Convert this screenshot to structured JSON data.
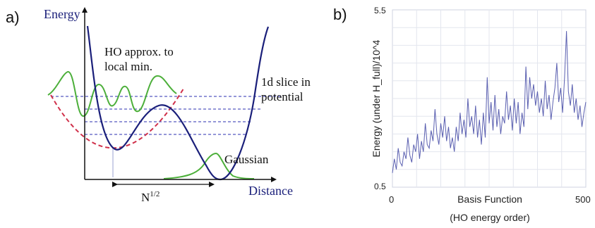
{
  "panel_a": {
    "label": "a)",
    "y_axis_label": "Energy",
    "x_axis_label": "Distance",
    "annotation_ho": [
      "HO approx. to",
      "local min."
    ],
    "annotation_slice": [
      "1d slice in",
      "potential"
    ],
    "annotation_gaussian": "Gaussian",
    "width_label_base": "N",
    "width_label_exp": "1/2",
    "colors": {
      "potential": "#1a1f7a",
      "ho_approx": "#d0304a",
      "wavefunction": "#4caf3a",
      "levels": "#2b2fb0",
      "axis": "#111111"
    }
  },
  "panel_b": {
    "label": "b)",
    "chart_data": {
      "type": "line",
      "xlabel": "Basis Function",
      "xlabel_2": "(HO energy order)",
      "ylabel": "Energy  (under H_full)/10^4",
      "xlim": [
        0,
        500
      ],
      "ylim": [
        0.5,
        5.5
      ],
      "x_ticks": [
        "0",
        "500"
      ],
      "y_ticks": [
        "0.5",
        "5.5"
      ],
      "grid": true,
      "line_color": "#5a5fb0",
      "series": [
        {
          "x": [
            0,
            5,
            10,
            15,
            20,
            25,
            30,
            35,
            40,
            45,
            50,
            55,
            60,
            65,
            70,
            75,
            80,
            85,
            90,
            95,
            100,
            105,
            110,
            115,
            120,
            125,
            130,
            135,
            140,
            145,
            150,
            155,
            160,
            165,
            170,
            175,
            180,
            185,
            190,
            195,
            200,
            205,
            210,
            215,
            220,
            225,
            230,
            235,
            240,
            245,
            250,
            255,
            260,
            265,
            270,
            275,
            280,
            285,
            290,
            295,
            300,
            305,
            310,
            315,
            320,
            325,
            330,
            335,
            340,
            345,
            350,
            355,
            360,
            365,
            370,
            375,
            380,
            385,
            390,
            395,
            400,
            405,
            410,
            415,
            420,
            425,
            430,
            435,
            440,
            445,
            450,
            455,
            460,
            465,
            470,
            475,
            480,
            485,
            490,
            495,
            500
          ],
          "values": [
            0.9,
            1.3,
            1.0,
            1.6,
            1.2,
            1.1,
            1.5,
            1.3,
            1.9,
            1.4,
            1.2,
            1.7,
            1.5,
            2.0,
            1.3,
            1.8,
            1.5,
            2.3,
            1.7,
            1.6,
            2.1,
            1.8,
            2.7,
            2.0,
            1.7,
            2.3,
            1.9,
            2.5,
            1.8,
            2.2,
            1.6,
            1.9,
            1.5,
            2.2,
            1.8,
            2.6,
            2.0,
            2.4,
            1.9,
            3.0,
            2.2,
            2.5,
            2.0,
            2.8,
            1.9,
            2.4,
            1.7,
            2.6,
            1.9,
            3.6,
            2.3,
            2.9,
            2.1,
            3.1,
            2.2,
            2.7,
            2.0,
            2.5,
            2.3,
            3.2,
            2.4,
            2.8,
            2.1,
            3.0,
            2.3,
            2.9,
            2.0,
            2.6,
            2.2,
            3.9,
            2.7,
            3.6,
            3.0,
            3.4,
            2.8,
            3.2,
            2.6,
            3.0,
            2.5,
            3.5,
            2.7,
            3.1,
            2.4,
            2.9,
            3.3,
            4.0,
            2.9,
            3.3,
            2.6,
            3.6,
            4.9,
            3.2,
            2.8,
            3.4,
            2.6,
            3.0,
            2.4,
            2.8,
            2.2,
            2.6,
            2.9
          ]
        }
      ]
    }
  }
}
